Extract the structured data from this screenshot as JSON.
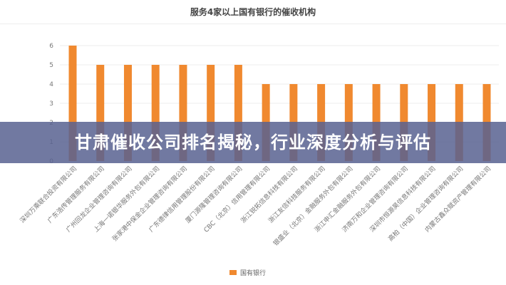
{
  "chart_data": {
    "type": "bar",
    "title": "服务4家以上国有银行的催收机构",
    "categories": [
      "深圳万乘联合投资有限公司",
      "广东浩传管理服务有限公司",
      "广州回龙企业管理咨询有限公司",
      "上海一诺银华服务外包有限公司",
      "张家港中保金企业管理咨询有限公司",
      "广东德律信用管理股份有限公司",
      "厦门源隆管理咨询有限公司",
      "CBC（北京）信用管理有限公司",
      "浙江锐拓信息科技有限公司",
      "浙江友信科技服务有限公司",
      "银盛业（北京）金融服务外包有限公司",
      "浙江申汇金融服务外包有限公司",
      "济南万和企业管理咨询有限公司",
      "深圳市恒源昊信息科技有限公司",
      "高柏（中国）企业管理咨询有限公司",
      "内蒙古鑫众赋资产管理有限公司"
    ],
    "series": [
      {
        "name": "国有银行",
        "values": [
          6,
          5,
          5,
          5,
          5,
          5,
          5,
          4,
          4,
          4,
          4,
          4,
          4,
          4,
          4,
          4
        ],
        "color": "#f0892f"
      }
    ],
    "ylim": [
      0,
      6
    ],
    "yticks": [
      0,
      1,
      2,
      3,
      4,
      5,
      6
    ],
    "grid": true,
    "legend": "bottom-center"
  },
  "banner": {
    "text": "甘肃催收公司排名揭秘，行业深度分析与评估"
  }
}
